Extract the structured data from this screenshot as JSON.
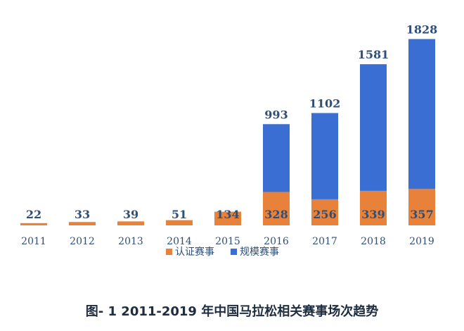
{
  "chart_data": {
    "type": "bar",
    "stacked": true,
    "title": "图- 1 2011-2019 年中国马拉松相关赛事场次趋势",
    "categories": [
      "2011",
      "2012",
      "2013",
      "2014",
      "2015",
      "2016",
      "2017",
      "2018",
      "2019"
    ],
    "series": [
      {
        "name": "认证赛事",
        "color": "#e8823a",
        "values": [
          22,
          33,
          39,
          51,
          134,
          328,
          256,
          339,
          357
        ]
      },
      {
        "name": "规模赛事",
        "color": "#3a6ed2",
        "values": [
          0,
          0,
          0,
          0,
          0,
          665,
          846,
          1242,
          1471
        ]
      }
    ],
    "totals": [
      null,
      null,
      null,
      null,
      null,
      993,
      1102,
      1581,
      1828
    ],
    "ylim": [
      0,
      1900
    ],
    "grid": false,
    "legend": "bottom"
  }
}
